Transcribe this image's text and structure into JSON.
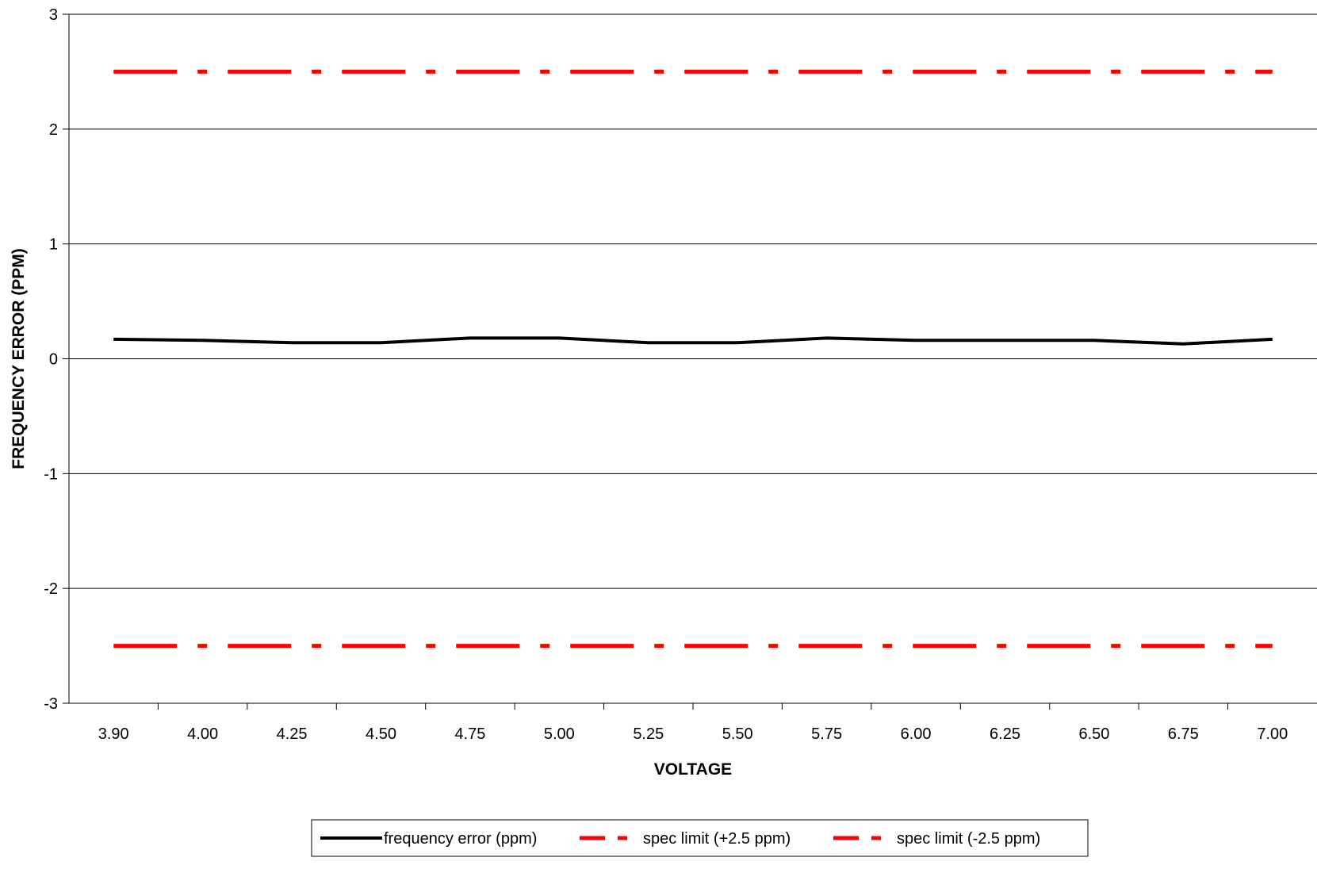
{
  "chart_data": {
    "type": "line",
    "title": "",
    "xlabel": "VOLTAGE",
    "ylabel": "FREQUENCY ERROR (PPM)",
    "categories": [
      "3.90",
      "4.00",
      "4.25",
      "4.50",
      "4.75",
      "5.00",
      "5.25",
      "5.50",
      "5.75",
      "6.00",
      "6.25",
      "6.50",
      "6.75",
      "7.00"
    ],
    "ylim": [
      -3,
      3
    ],
    "yticks": [
      "3",
      "2",
      "1",
      "0",
      "-1",
      "-2",
      "-3"
    ],
    "ytick_values": [
      3,
      2,
      1,
      0,
      -1,
      -2,
      -3
    ],
    "grid": "horizontal",
    "legend_position": "bottom",
    "series": [
      {
        "name": "frequency error (ppm)",
        "color": "#000000",
        "style": "solid",
        "values": [
          0.17,
          0.16,
          0.14,
          0.14,
          0.18,
          0.18,
          0.14,
          0.14,
          0.18,
          0.16,
          0.16,
          0.16,
          0.13,
          0.17
        ]
      },
      {
        "name": "spec limit (+2.5 ppm)",
        "color": "#ff0000",
        "style": "dash-dot",
        "values": [
          2.5,
          2.5,
          2.5,
          2.5,
          2.5,
          2.5,
          2.5,
          2.5,
          2.5,
          2.5,
          2.5,
          2.5,
          2.5,
          2.5
        ]
      },
      {
        "name": "spec limit (-2.5 ppm)",
        "color": "#ff0000",
        "style": "dash-dot",
        "values": [
          -2.5,
          -2.5,
          -2.5,
          -2.5,
          -2.5,
          -2.5,
          -2.5,
          -2.5,
          -2.5,
          -2.5,
          -2.5,
          -2.5,
          -2.5,
          -2.5
        ]
      }
    ]
  }
}
